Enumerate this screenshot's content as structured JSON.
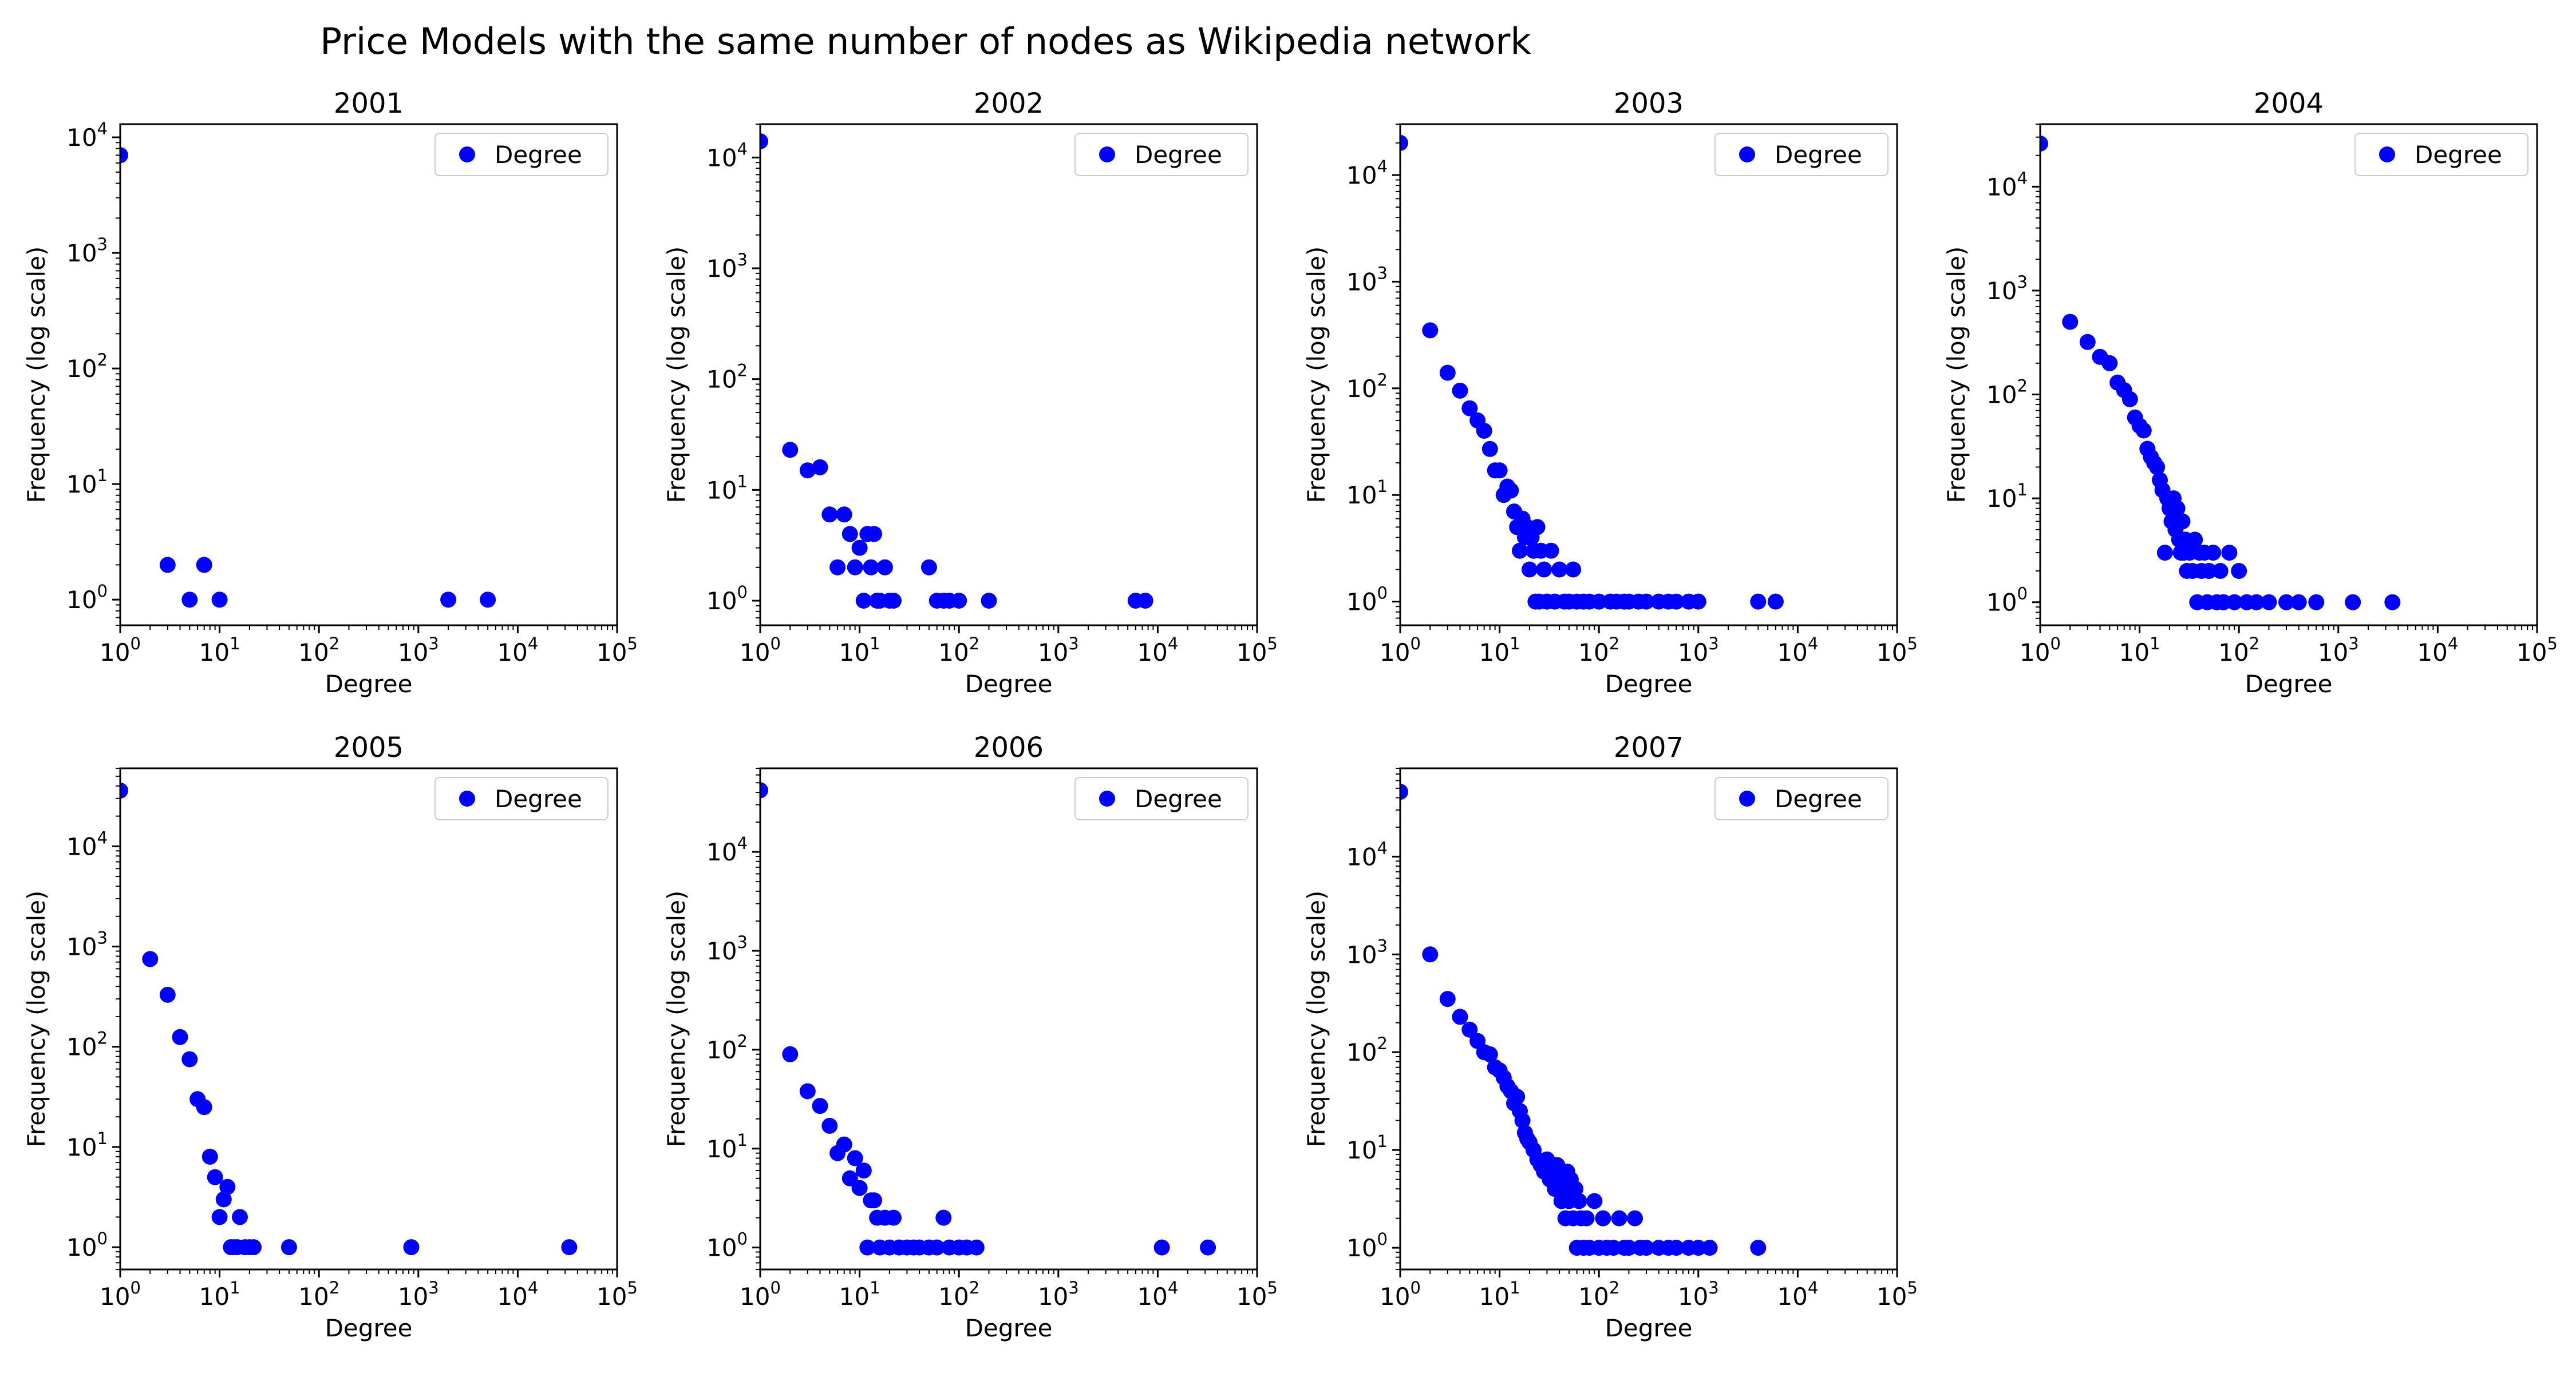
{
  "figure": {
    "title": "Price Models with the same number of nodes as Wikipedia network"
  },
  "chart_data": [
    {
      "type": "scatter",
      "title": "2001",
      "xlabel": "Degree",
      "ylabel": "Frequency (log scale)",
      "xscale": "log",
      "yscale": "log",
      "xlim": [
        1,
        100000
      ],
      "ylim": [
        0.6,
        13000
      ],
      "grid": false,
      "legend": {
        "entries": [
          "Degree"
        ],
        "placement": "upper right"
      },
      "series": [
        {
          "name": "Degree",
          "color": "#0000ff",
          "x": [
            1,
            3,
            5,
            7,
            10,
            2000,
            5000
          ],
          "y": [
            7000,
            2,
            1,
            2,
            1,
            1,
            1
          ]
        }
      ]
    },
    {
      "type": "scatter",
      "title": "2002",
      "xlabel": "Degree",
      "ylabel": "Frequency (log scale)",
      "xscale": "log",
      "yscale": "log",
      "xlim": [
        1,
        100000
      ],
      "ylim": [
        0.6,
        20000
      ],
      "grid": false,
      "legend": {
        "entries": [
          "Degree"
        ],
        "placement": "upper right"
      },
      "series": [
        {
          "name": "Degree",
          "color": "#0000ff",
          "x": [
            1,
            2,
            3,
            4,
            5,
            6,
            7,
            8,
            9,
            10,
            11,
            12,
            13,
            14,
            15,
            16,
            18,
            20,
            22,
            50,
            60,
            70,
            80,
            100,
            200,
            6000,
            7500
          ],
          "y": [
            14000,
            23,
            15,
            16,
            6,
            2,
            6,
            4,
            2,
            3,
            1,
            4,
            2,
            4,
            1,
            1,
            2,
            1,
            1,
            2,
            1,
            1,
            1,
            1,
            1,
            1,
            1
          ]
        }
      ]
    },
    {
      "type": "scatter",
      "title": "2003",
      "xlabel": "Degree",
      "ylabel": "Frequency (log scale)",
      "xscale": "log",
      "yscale": "log",
      "xlim": [
        1,
        100000
      ],
      "ylim": [
        0.6,
        30000
      ],
      "grid": false,
      "legend": {
        "entries": [
          "Degree"
        ],
        "placement": "upper right"
      },
      "series": [
        {
          "name": "Degree",
          "color": "#0000ff",
          "x": [
            1,
            2,
            3,
            4,
            5,
            6,
            7,
            8,
            9,
            10,
            11,
            12,
            13,
            14,
            15,
            16,
            17,
            18,
            19,
            20,
            21,
            22,
            23,
            24,
            25,
            26,
            28,
            30,
            33,
            36,
            40,
            45,
            50,
            55,
            60,
            70,
            80,
            100,
            130,
            150,
            180,
            200,
            250,
            300,
            400,
            500,
            600,
            800,
            1000,
            4000,
            6000
          ],
          "y": [
            20000,
            350,
            140,
            95,
            65,
            50,
            40,
            27,
            17,
            17,
            10,
            12,
            11,
            7,
            5,
            3,
            6,
            4,
            5,
            2,
            4,
            3,
            1,
            5,
            1,
            3,
            2,
            1,
            3,
            1,
            2,
            1,
            1,
            2,
            1,
            1,
            1,
            1,
            1,
            1,
            1,
            1,
            1,
            1,
            1,
            1,
            1,
            1,
            1,
            1,
            1
          ]
        }
      ]
    },
    {
      "type": "scatter",
      "title": "2004",
      "xlabel": "Degree",
      "ylabel": "Frequency (log scale)",
      "xscale": "log",
      "yscale": "log",
      "xlim": [
        1,
        100000
      ],
      "ylim": [
        0.6,
        40000
      ],
      "grid": false,
      "legend": {
        "entries": [
          "Degree"
        ],
        "placement": "upper right"
      },
      "series": [
        {
          "name": "Degree",
          "color": "#0000ff",
          "x": [
            1,
            2,
            3,
            4,
            5,
            6,
            7,
            8,
            9,
            10,
            11,
            12,
            13,
            14,
            15,
            16,
            17,
            18,
            19,
            20,
            21,
            22,
            23,
            24,
            25,
            26,
            27,
            28,
            29,
            30,
            32,
            34,
            36,
            38,
            40,
            42,
            45,
            48,
            50,
            55,
            60,
            65,
            70,
            80,
            90,
            100,
            120,
            150,
            200,
            300,
            400,
            600,
            1400,
            3500
          ],
          "y": [
            26000,
            500,
            320,
            230,
            200,
            130,
            110,
            90,
            60,
            50,
            45,
            30,
            25,
            22,
            20,
            15,
            12,
            3,
            10,
            8,
            6,
            10,
            5,
            8,
            4,
            3,
            6,
            3,
            4,
            2,
            3,
            2,
            4,
            1,
            3,
            2,
            3,
            1,
            2,
            3,
            1,
            2,
            1,
            3,
            1,
            2,
            1,
            1,
            1,
            1,
            1,
            1,
            1,
            1
          ]
        }
      ]
    },
    {
      "type": "scatter",
      "title": "2005",
      "xlabel": "Degree",
      "ylabel": "Frequency (log scale)",
      "xscale": "log",
      "yscale": "log",
      "xlim": [
        1,
        100000
      ],
      "ylim": [
        0.6,
        60000
      ],
      "grid": false,
      "legend": {
        "entries": [
          "Degree"
        ],
        "placement": "upper right"
      },
      "series": [
        {
          "name": "Degree",
          "color": "#0000ff",
          "x": [
            1,
            2,
            3,
            4,
            5,
            6,
            7,
            8,
            9,
            10,
            11,
            12,
            13,
            14,
            15,
            16,
            18,
            20,
            22,
            50,
            850,
            33000
          ],
          "y": [
            36000,
            750,
            330,
            125,
            75,
            30,
            25,
            8,
            5,
            2,
            3,
            4,
            1,
            1,
            1,
            2,
            1,
            1,
            1,
            1,
            1,
            1
          ]
        }
      ]
    },
    {
      "type": "scatter",
      "title": "2006",
      "xlabel": "Degree",
      "ylabel": "Frequency (log scale)",
      "xscale": "log",
      "yscale": "log",
      "xlim": [
        1,
        100000
      ],
      "ylim": [
        0.6,
        70000
      ],
      "grid": false,
      "legend": {
        "entries": [
          "Degree"
        ],
        "placement": "upper right"
      },
      "series": [
        {
          "name": "Degree",
          "color": "#0000ff",
          "x": [
            1,
            2,
            3,
            4,
            5,
            6,
            7,
            8,
            9,
            10,
            11,
            12,
            13,
            14,
            15,
            16,
            18,
            20,
            22,
            25,
            30,
            35,
            40,
            50,
            60,
            70,
            80,
            100,
            120,
            150,
            11000,
            32000
          ],
          "y": [
            42000,
            90,
            38,
            27,
            17,
            9,
            11,
            5,
            8,
            4,
            6,
            1,
            3,
            3,
            2,
            1,
            2,
            1,
            2,
            1,
            1,
            1,
            1,
            1,
            1,
            2,
            1,
            1,
            1,
            1,
            1,
            1
          ]
        }
      ]
    },
    {
      "type": "scatter",
      "title": "2007",
      "xlabel": "Degree",
      "ylabel": "Frequency (log scale)",
      "xscale": "log",
      "yscale": "log",
      "xlim": [
        1,
        100000
      ],
      "ylim": [
        0.6,
        80000
      ],
      "grid": false,
      "legend": {
        "entries": [
          "Degree"
        ],
        "placement": "upper right"
      },
      "series": [
        {
          "name": "Degree",
          "color": "#0000ff",
          "x": [
            1,
            2,
            3,
            4,
            5,
            6,
            7,
            8,
            9,
            10,
            11,
            12,
            13,
            14,
            15,
            16,
            17,
            18,
            19,
            20,
            22,
            24,
            26,
            28,
            30,
            32,
            34,
            36,
            38,
            40,
            42,
            44,
            46,
            48,
            50,
            52,
            55,
            58,
            60,
            63,
            66,
            70,
            75,
            80,
            90,
            100,
            110,
            120,
            140,
            160,
            180,
            200,
            230,
            260,
            300,
            400,
            500,
            600,
            800,
            1000,
            1300,
            4000
          ],
          "y": [
            46000,
            1000,
            350,
            230,
            170,
            130,
            100,
            95,
            70,
            65,
            55,
            45,
            40,
            30,
            35,
            25,
            20,
            15,
            13,
            12,
            10,
            8,
            7,
            6,
            8,
            5,
            6,
            4,
            7,
            5,
            3,
            4,
            2,
            6,
            3,
            5,
            2,
            4,
            1,
            3,
            2,
            1,
            2,
            1,
            3,
            1,
            2,
            1,
            1,
            2,
            1,
            1,
            2,
            1,
            1,
            1,
            1,
            1,
            1,
            1,
            1,
            1
          ]
        }
      ]
    }
  ]
}
